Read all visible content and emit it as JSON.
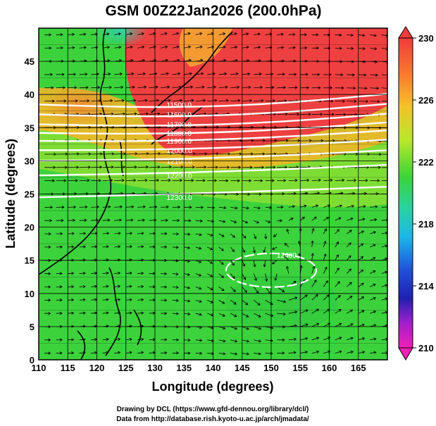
{
  "chart_data": {
    "type": "heatmap",
    "title": "GSM 00Z22Jan2026 (200.0hPa)",
    "xlabel": "Longitude (degrees)",
    "ylabel": "Latitude  (degrees)",
    "xlim": [
      110,
      170
    ],
    "ylim": [
      0,
      50
    ],
    "x_ticks": [
      "110",
      "115",
      "120",
      "125",
      "130",
      "135",
      "140",
      "145",
      "150",
      "155",
      "160",
      "165"
    ],
    "y_ticks": [
      "0",
      "5",
      "10",
      "15",
      "20",
      "25",
      "30",
      "35",
      "40",
      "45"
    ],
    "colorbar": {
      "range": [
        210,
        230
      ],
      "tick_labels": [
        "230",
        "226",
        "222",
        "218",
        "214",
        "210"
      ]
    },
    "contours": [
      {
        "label": "11500.0",
        "lat_at_150E": 38.5
      },
      {
        "label": "11600.0",
        "lat_at_150E": 37.0
      },
      {
        "label": "11700.0",
        "lat_at_150E": 35.5
      },
      {
        "label": "11800.0",
        "lat_at_150E": 34.2
      },
      {
        "label": "11900.0",
        "lat_at_150E": 33.0
      },
      {
        "label": "12000.0",
        "lat_at_150E": 31.6
      },
      {
        "label": "12100.0",
        "lat_at_150E": 30.0
      },
      {
        "label": "12200.0",
        "lat_at_150E": 27.8
      },
      {
        "label": "12300.0",
        "lat_at_150E": 24.5
      }
    ],
    "high_contour_label": "12400",
    "credits": [
      "Drawing by DCL (https://www.gfd-dennou.org/library/dcl/)",
      "Data from http://database.rish.kyoto-u.ac.jp/arch/jmadata/"
    ],
    "colors": {
      "warm": "#ee4040",
      "cool": "#38d030",
      "contour": "#ffffff"
    }
  }
}
